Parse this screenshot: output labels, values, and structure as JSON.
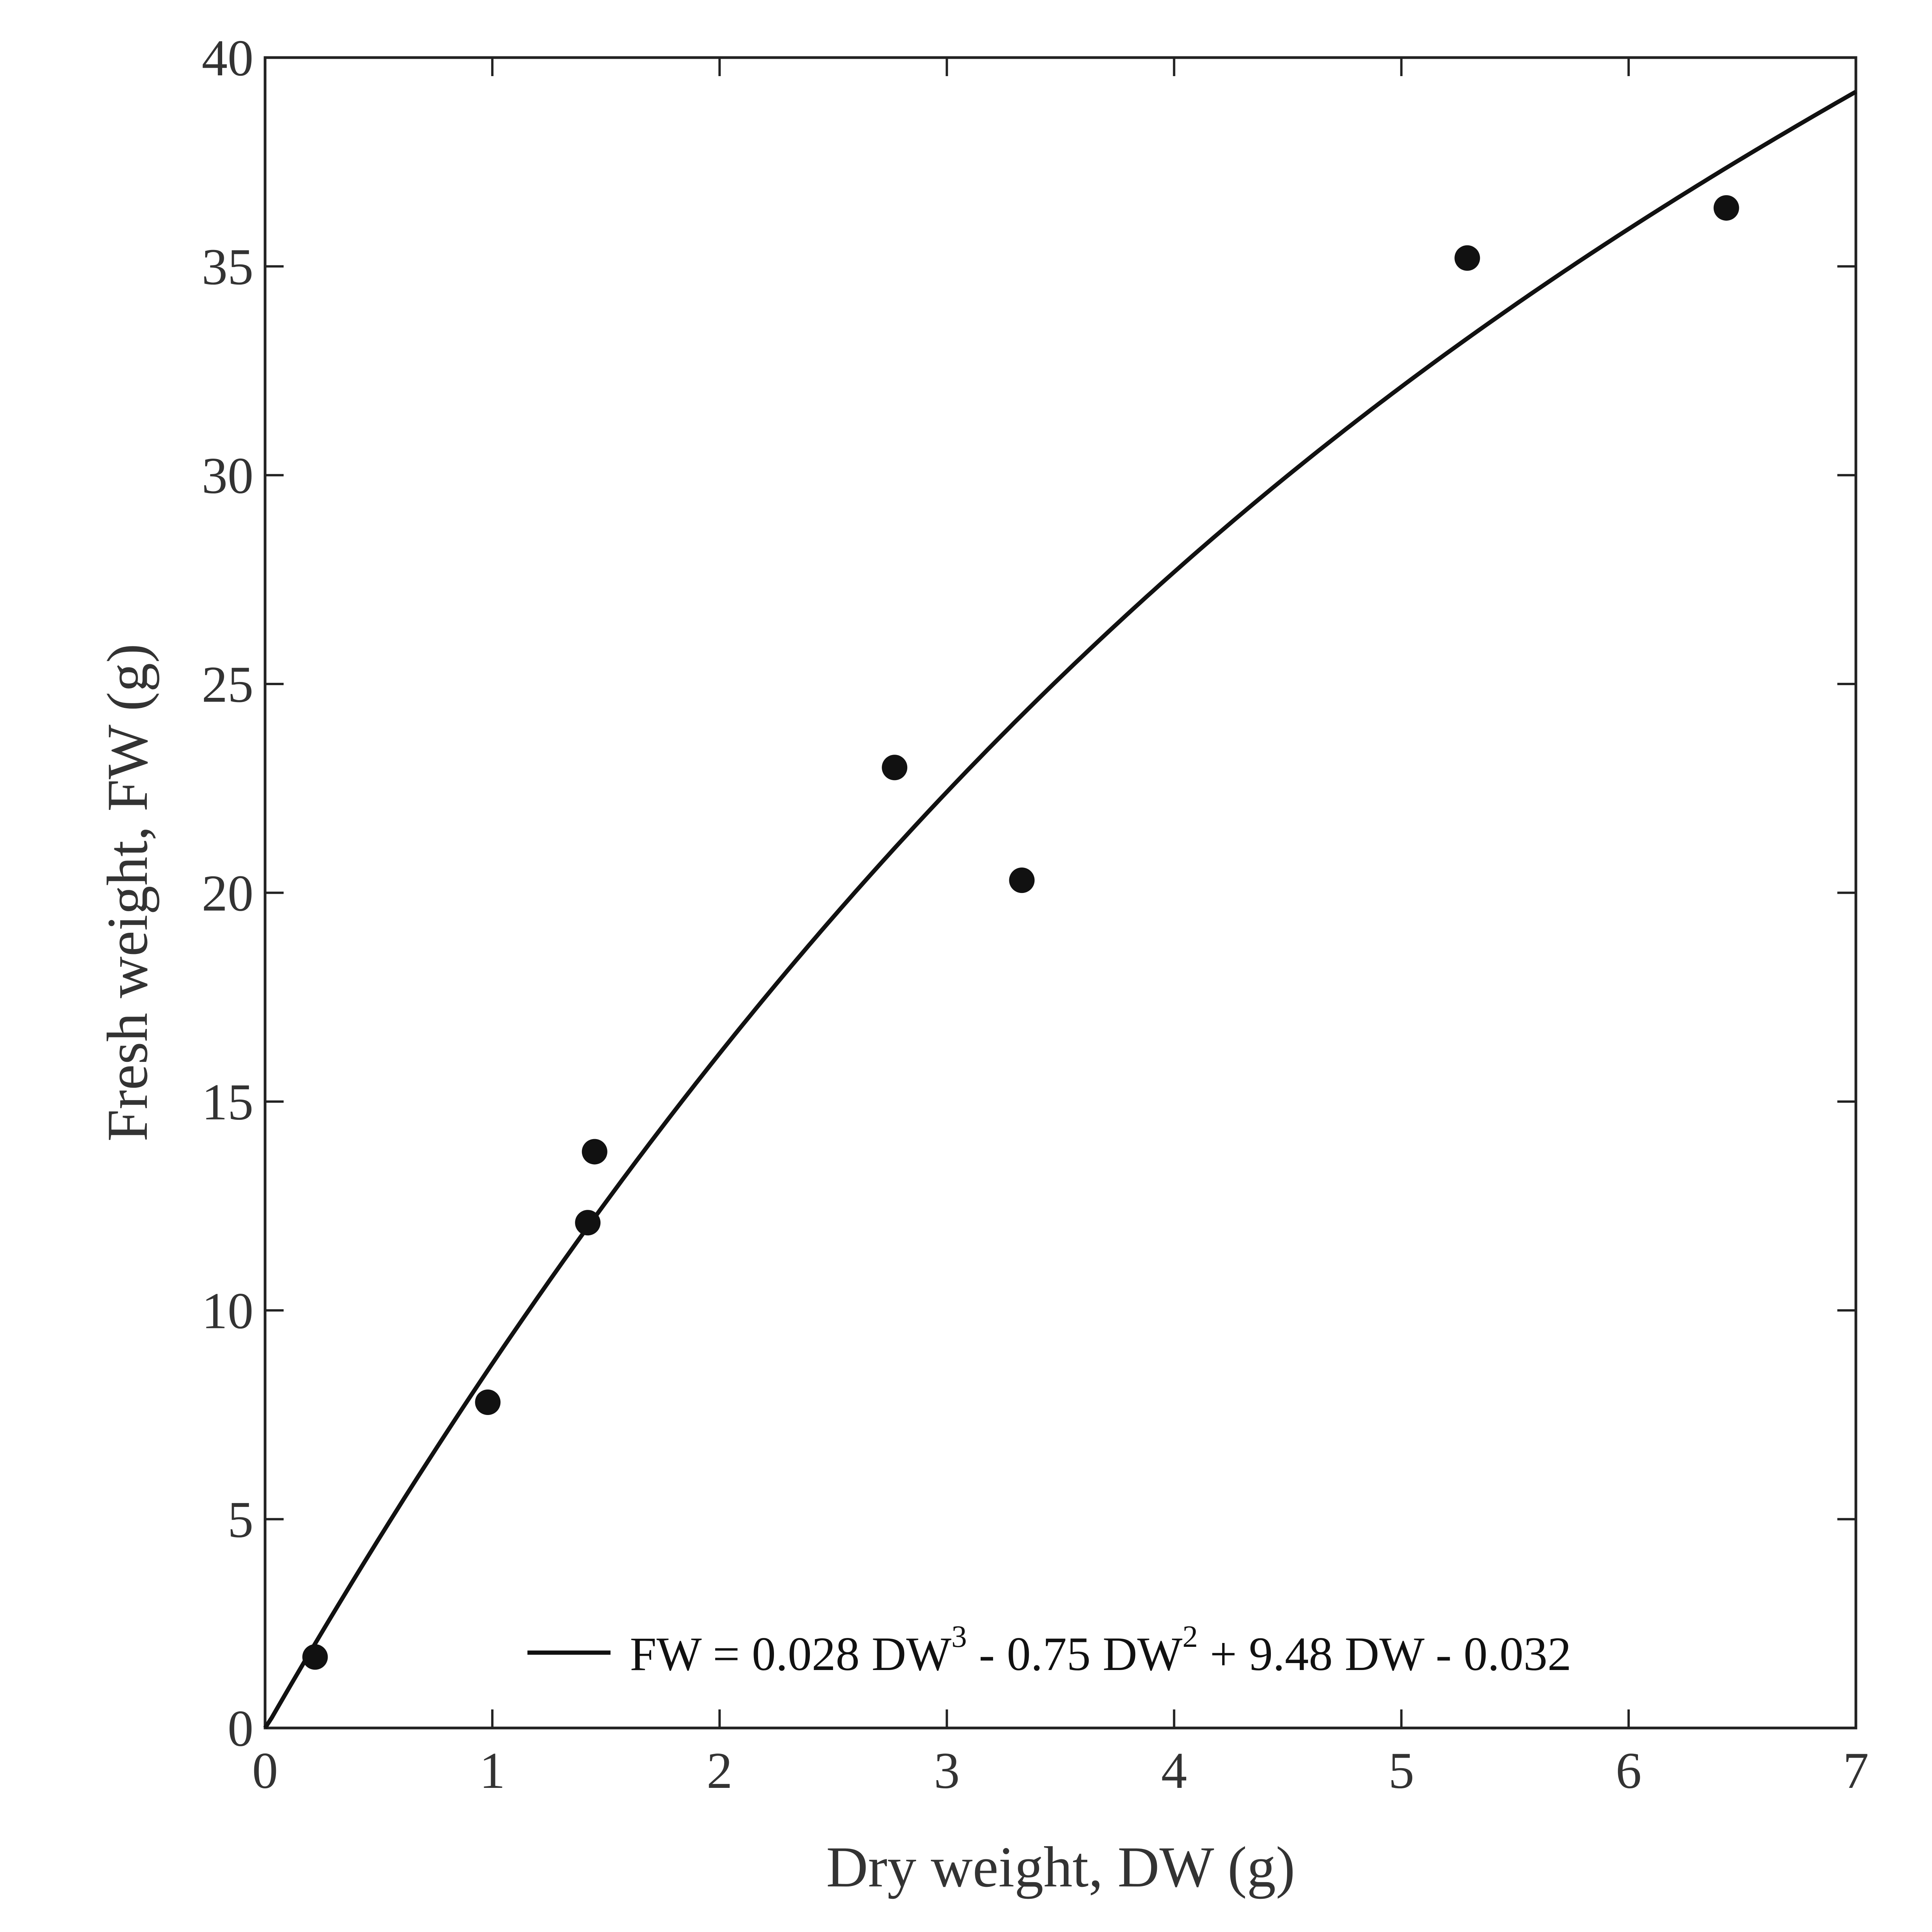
{
  "chart_data": {
    "type": "scatter",
    "xlabel": "Dry weight, DW (g)",
    "ylabel": "Fresh weight, FW (g)",
    "xlim": [
      0,
      7
    ],
    "ylim": [
      0,
      40
    ],
    "xticks": [
      0,
      1,
      2,
      3,
      4,
      5,
      6,
      7
    ],
    "yticks": [
      0,
      5,
      10,
      15,
      20,
      25,
      30,
      35,
      40
    ],
    "xtick_labels": [
      "0",
      "1",
      "2",
      "3",
      "4",
      "5",
      "6",
      "7"
    ],
    "ytick_labels": [
      "0",
      "5",
      "10",
      "15",
      "20",
      "25",
      "30",
      "35",
      "40"
    ],
    "grid": false,
    "legend_position": "bottom-right",
    "points": [
      {
        "x": 0.22,
        "y": 1.7
      },
      {
        "x": 0.98,
        "y": 7.8
      },
      {
        "x": 1.42,
        "y": 12.1
      },
      {
        "x": 1.45,
        "y": 13.8
      },
      {
        "x": 2.77,
        "y": 23.0
      },
      {
        "x": 3.33,
        "y": 20.3
      },
      {
        "x": 5.29,
        "y": 35.2
      },
      {
        "x": 6.43,
        "y": 36.4
      }
    ],
    "fit": {
      "coefficients": [
        0.028,
        -0.75,
        9.48,
        -0.032
      ],
      "legend": {
        "fw": "FW = 0.028 DW",
        "exp1": "3",
        "mid": " - 0.75 DW",
        "exp2": "2",
        "tail": " + 9.48 DW - 0.032"
      }
    },
    "colors": {
      "points": "#111111",
      "line": "#111111",
      "axes": "#222222"
    }
  }
}
